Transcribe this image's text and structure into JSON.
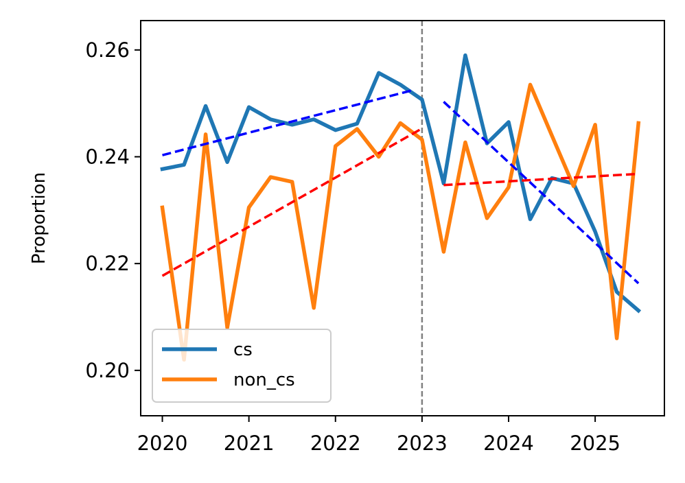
{
  "chart_data": {
    "type": "line",
    "title": "",
    "xlabel": "",
    "ylabel": "Proportion",
    "xlim": [
      2019.75,
      2025.8
    ],
    "ylim": [
      0.1915,
      0.2655
    ],
    "xticks": [
      2020,
      2021,
      2022,
      2023,
      2024,
      2025
    ],
    "yticks": [
      0.2,
      0.22,
      0.24,
      0.26
    ],
    "ytick_labels": [
      "0.20",
      "0.22",
      "0.24",
      "0.26"
    ],
    "grid": false,
    "legend_position": "lower-left",
    "colors": {
      "cs": "#1f77b4",
      "non_cs": "#ff7f0e",
      "trend_cs": "#0000ff",
      "trend_non_cs": "#ff0000",
      "divider": "#808080"
    },
    "series": [
      {
        "name": "cs",
        "x": [
          2020.0,
          2020.25,
          2020.5,
          2020.75,
          2021.0,
          2021.25,
          2021.5,
          2021.75,
          2022.0,
          2022.25,
          2022.5,
          2022.75,
          2023.0,
          2023.25,
          2023.5,
          2023.75,
          2024.0,
          2024.25,
          2024.5,
          2024.75,
          2025.0,
          2025.25,
          2025.5
        ],
        "values": [
          0.2377,
          0.2385,
          0.2495,
          0.239,
          0.2493,
          0.247,
          0.246,
          0.247,
          0.245,
          0.2462,
          0.2557,
          0.2535,
          0.2507,
          0.235,
          0.259,
          0.2425,
          0.2465,
          0.2283,
          0.236,
          0.235,
          0.226,
          0.2147,
          0.2112
        ]
      },
      {
        "name": "non_cs",
        "x": [
          2020.0,
          2020.25,
          2020.5,
          2020.75,
          2021.0,
          2021.25,
          2021.5,
          2021.75,
          2022.0,
          2022.25,
          2022.5,
          2022.75,
          2023.0,
          2023.25,
          2023.5,
          2023.75,
          2024.0,
          2024.25,
          2024.5,
          2024.75,
          2025.0,
          2025.25,
          2025.5
        ],
        "values": [
          0.2305,
          0.202,
          0.2442,
          0.208,
          0.2305,
          0.2362,
          0.2353,
          0.2117,
          0.242,
          0.2452,
          0.24,
          0.2463,
          0.2432,
          0.2222,
          0.2427,
          0.2285,
          0.2343,
          0.2535,
          0.244,
          0.2345,
          0.246,
          0.206,
          0.2463
        ]
      }
    ],
    "trend_lines": [
      {
        "series": "cs",
        "x": [
          2020.0,
          2022.9
        ],
        "values": [
          0.2403,
          0.2525
        ]
      },
      {
        "series": "cs",
        "x": [
          2023.25,
          2025.5
        ],
        "values": [
          0.2503,
          0.2163
        ]
      },
      {
        "series": "non_cs",
        "x": [
          2020.0,
          2023.0
        ],
        "values": [
          0.2177,
          0.2453
        ]
      },
      {
        "series": "non_cs",
        "x": [
          2023.25,
          2025.5
        ],
        "values": [
          0.2347,
          0.2368
        ]
      }
    ],
    "vline_x": 2023.0
  }
}
